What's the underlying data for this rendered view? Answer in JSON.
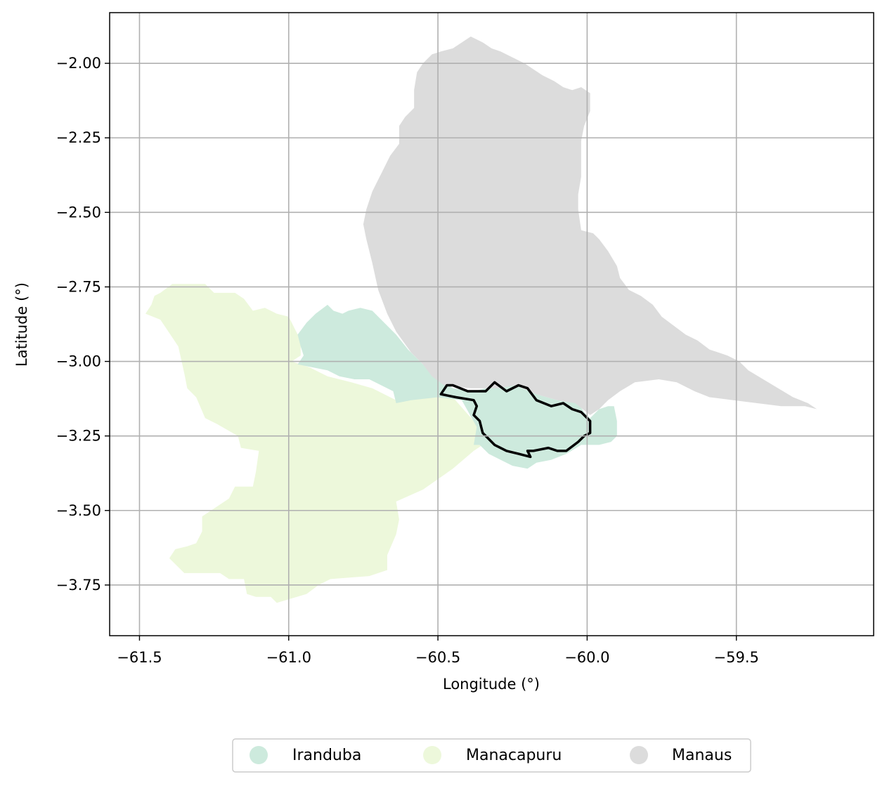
{
  "map": {
    "xlabel": "Longitude (°)",
    "ylabel": "Latitude (°)",
    "xlim": [
      -61.6,
      -59.04
    ],
    "ylim": [
      -3.92,
      -1.83
    ],
    "grid": true,
    "xticks": [
      -61.5,
      -61.0,
      -60.5,
      -60.0,
      -59.5
    ],
    "xtick_labels": [
      "−61.5",
      "−61.0",
      "−60.5",
      "−60.0",
      "−59.5"
    ],
    "yticks": [
      -2.0,
      -2.25,
      -2.5,
      -2.75,
      -3.0,
      -3.25,
      -3.5,
      -3.75
    ],
    "ytick_labels": [
      "−2.00",
      "−2.25",
      "−2.50",
      "−2.75",
      "−3.00",
      "−3.25",
      "−3.50",
      "−3.75"
    ],
    "legend_position": "bottom-center",
    "regions": [
      {
        "name": "Manacapuru",
        "color": "#edf8db",
        "polygon": [
          [
            -61.46,
            -2.81
          ],
          [
            -61.45,
            -2.78
          ],
          [
            -61.43,
            -2.77
          ],
          [
            -61.39,
            -2.74
          ],
          [
            -61.33,
            -2.74
          ],
          [
            -61.28,
            -2.74
          ],
          [
            -61.25,
            -2.77
          ],
          [
            -61.18,
            -2.77
          ],
          [
            -61.15,
            -2.79
          ],
          [
            -61.12,
            -2.83
          ],
          [
            -61.08,
            -2.82
          ],
          [
            -61.04,
            -2.84
          ],
          [
            -61.0,
            -2.85
          ],
          [
            -60.98,
            -2.89
          ],
          [
            -60.96,
            -2.93
          ],
          [
            -60.96,
            -2.98
          ],
          [
            -60.99,
            -3.0
          ],
          [
            -60.93,
            -3.02
          ],
          [
            -60.87,
            -3.05
          ],
          [
            -60.79,
            -3.07
          ],
          [
            -60.72,
            -3.09
          ],
          [
            -60.64,
            -3.13
          ],
          [
            -60.56,
            -3.12
          ],
          [
            -60.45,
            -3.12
          ],
          [
            -60.38,
            -3.2
          ],
          [
            -60.33,
            -3.27
          ],
          [
            -60.35,
            -3.28
          ],
          [
            -60.38,
            -3.3
          ],
          [
            -60.45,
            -3.36
          ],
          [
            -60.55,
            -3.43
          ],
          [
            -60.64,
            -3.47
          ],
          [
            -60.63,
            -3.53
          ],
          [
            -60.64,
            -3.58
          ],
          [
            -60.67,
            -3.65
          ],
          [
            -60.67,
            -3.7
          ],
          [
            -60.73,
            -3.72
          ],
          [
            -60.86,
            -3.73
          ],
          [
            -60.9,
            -3.75
          ],
          [
            -60.94,
            -3.78
          ],
          [
            -61.04,
            -3.81
          ],
          [
            -61.06,
            -3.79
          ],
          [
            -61.08,
            -3.79
          ],
          [
            -61.11,
            -3.79
          ],
          [
            -61.14,
            -3.78
          ],
          [
            -61.15,
            -3.73
          ],
          [
            -61.2,
            -3.73
          ],
          [
            -61.23,
            -3.71
          ],
          [
            -61.3,
            -3.71
          ],
          [
            -61.35,
            -3.71
          ],
          [
            -61.4,
            -3.66
          ],
          [
            -61.38,
            -3.63
          ],
          [
            -61.34,
            -3.62
          ],
          [
            -61.31,
            -3.61
          ],
          [
            -61.29,
            -3.57
          ],
          [
            -61.29,
            -3.52
          ],
          [
            -61.2,
            -3.46
          ],
          [
            -61.18,
            -3.42
          ],
          [
            -61.12,
            -3.42
          ],
          [
            -61.11,
            -3.37
          ],
          [
            -61.1,
            -3.3
          ],
          [
            -61.16,
            -3.29
          ],
          [
            -61.17,
            -3.25
          ],
          [
            -61.24,
            -3.21
          ],
          [
            -61.28,
            -3.19
          ],
          [
            -61.31,
            -3.12
          ],
          [
            -61.34,
            -3.09
          ],
          [
            -61.35,
            -3.04
          ],
          [
            -61.37,
            -2.95
          ],
          [
            -61.43,
            -2.86
          ],
          [
            -61.48,
            -2.84
          ],
          [
            -61.46,
            -2.81
          ]
        ]
      },
      {
        "name": "Iranduba",
        "color": "#cdeadd",
        "polygon": [
          [
            -60.97,
            -2.91
          ],
          [
            -60.94,
            -2.87
          ],
          [
            -60.91,
            -2.84
          ],
          [
            -60.87,
            -2.81
          ],
          [
            -60.85,
            -2.83
          ],
          [
            -60.82,
            -2.84
          ],
          [
            -60.8,
            -2.83
          ],
          [
            -60.76,
            -2.82
          ],
          [
            -60.72,
            -2.83
          ],
          [
            -60.69,
            -2.86
          ],
          [
            -60.64,
            -2.91
          ],
          [
            -60.6,
            -2.96
          ],
          [
            -60.55,
            -3.01
          ],
          [
            -60.51,
            -3.05
          ],
          [
            -60.45,
            -3.09
          ],
          [
            -60.38,
            -3.1
          ],
          [
            -60.3,
            -3.08
          ],
          [
            -60.24,
            -3.08
          ],
          [
            -60.17,
            -3.11
          ],
          [
            -60.1,
            -3.13
          ],
          [
            -60.03,
            -3.14
          ],
          [
            -60.01,
            -3.17
          ],
          [
            -59.99,
            -3.19
          ],
          [
            -59.96,
            -3.16
          ],
          [
            -59.93,
            -3.15
          ],
          [
            -59.91,
            -3.15
          ],
          [
            -59.9,
            -3.2
          ],
          [
            -59.9,
            -3.25
          ],
          [
            -59.92,
            -3.27
          ],
          [
            -59.96,
            -3.28
          ],
          [
            -60.02,
            -3.28
          ],
          [
            -60.07,
            -3.31
          ],
          [
            -60.12,
            -3.33
          ],
          [
            -60.17,
            -3.34
          ],
          [
            -60.2,
            -3.36
          ],
          [
            -60.25,
            -3.35
          ],
          [
            -60.29,
            -3.33
          ],
          [
            -60.33,
            -3.31
          ],
          [
            -60.36,
            -3.28
          ],
          [
            -60.38,
            -3.28
          ],
          [
            -60.37,
            -3.22
          ],
          [
            -60.42,
            -3.13
          ],
          [
            -60.5,
            -3.12
          ],
          [
            -60.59,
            -3.13
          ],
          [
            -60.64,
            -3.14
          ],
          [
            -60.65,
            -3.1
          ],
          [
            -60.69,
            -3.08
          ],
          [
            -60.73,
            -3.06
          ],
          [
            -60.78,
            -3.06
          ],
          [
            -60.83,
            -3.05
          ],
          [
            -60.87,
            -3.03
          ],
          [
            -60.92,
            -3.02
          ],
          [
            -60.97,
            -3.01
          ],
          [
            -60.95,
            -2.98
          ],
          [
            -60.96,
            -2.95
          ],
          [
            -60.97,
            -2.91
          ]
        ]
      },
      {
        "name": "Manaus",
        "color": "#dcdcdc",
        "polygon": [
          [
            -60.39,
            -1.91
          ],
          [
            -60.45,
            -1.95
          ],
          [
            -60.49,
            -1.96
          ],
          [
            -60.52,
            -1.97
          ],
          [
            -60.55,
            -2.0
          ],
          [
            -60.57,
            -2.03
          ],
          [
            -60.58,
            -2.09
          ],
          [
            -60.58,
            -2.15
          ],
          [
            -60.61,
            -2.18
          ],
          [
            -60.63,
            -2.21
          ],
          [
            -60.63,
            -2.27
          ],
          [
            -60.66,
            -2.31
          ],
          [
            -60.69,
            -2.37
          ],
          [
            -60.72,
            -2.43
          ],
          [
            -60.74,
            -2.49
          ],
          [
            -60.75,
            -2.54
          ],
          [
            -60.74,
            -2.59
          ],
          [
            -60.72,
            -2.67
          ],
          [
            -60.7,
            -2.76
          ],
          [
            -60.67,
            -2.84
          ],
          [
            -60.64,
            -2.9
          ],
          [
            -60.59,
            -2.97
          ],
          [
            -60.55,
            -3.01
          ],
          [
            -60.52,
            -3.05
          ],
          [
            -60.48,
            -3.08
          ],
          [
            -60.39,
            -3.09
          ],
          [
            -60.3,
            -3.09
          ],
          [
            -60.24,
            -3.08
          ],
          [
            -60.17,
            -3.11
          ],
          [
            -60.1,
            -3.13
          ],
          [
            -60.04,
            -3.14
          ],
          [
            -59.99,
            -3.18
          ],
          [
            -59.96,
            -3.16
          ],
          [
            -59.93,
            -3.13
          ],
          [
            -59.89,
            -3.1
          ],
          [
            -59.84,
            -3.07
          ],
          [
            -59.76,
            -3.06
          ],
          [
            -59.7,
            -3.07
          ],
          [
            -59.64,
            -3.1
          ],
          [
            -59.59,
            -3.12
          ],
          [
            -59.51,
            -3.13
          ],
          [
            -59.43,
            -3.14
          ],
          [
            -59.35,
            -3.15
          ],
          [
            -59.27,
            -3.15
          ],
          [
            -59.23,
            -3.16
          ],
          [
            -59.19,
            -3.17
          ],
          [
            -59.23,
            -3.16
          ],
          [
            -59.26,
            -3.14
          ],
          [
            -59.31,
            -3.12
          ],
          [
            -59.36,
            -3.09
          ],
          [
            -59.41,
            -3.06
          ],
          [
            -59.46,
            -3.03
          ],
          [
            -59.49,
            -3.0
          ],
          [
            -59.53,
            -2.98
          ],
          [
            -59.59,
            -2.96
          ],
          [
            -59.63,
            -2.93
          ],
          [
            -59.67,
            -2.91
          ],
          [
            -59.71,
            -2.88
          ],
          [
            -59.75,
            -2.85
          ],
          [
            -59.78,
            -2.81
          ],
          [
            -59.82,
            -2.78
          ],
          [
            -59.86,
            -2.76
          ],
          [
            -59.89,
            -2.72
          ],
          [
            -59.9,
            -2.68
          ],
          [
            -59.93,
            -2.63
          ],
          [
            -59.96,
            -2.59
          ],
          [
            -59.98,
            -2.57
          ],
          [
            -60.02,
            -2.56
          ],
          [
            -60.03,
            -2.49
          ],
          [
            -60.03,
            -2.44
          ],
          [
            -60.02,
            -2.38
          ],
          [
            -60.02,
            -2.31
          ],
          [
            -60.02,
            -2.26
          ],
          [
            -60.01,
            -2.21
          ],
          [
            -59.99,
            -2.16
          ],
          [
            -59.99,
            -2.1
          ],
          [
            -60.02,
            -2.08
          ],
          [
            -60.05,
            -2.09
          ],
          [
            -60.08,
            -2.08
          ],
          [
            -60.11,
            -2.06
          ],
          [
            -60.15,
            -2.04
          ],
          [
            -60.18,
            -2.02
          ],
          [
            -60.21,
            -2.0
          ],
          [
            -60.25,
            -1.98
          ],
          [
            -60.29,
            -1.96
          ],
          [
            -60.32,
            -1.95
          ],
          [
            -60.35,
            -1.93
          ],
          [
            -60.39,
            -1.91
          ]
        ]
      }
    ],
    "outline": {
      "color": "#000000",
      "polygon": [
        [
          -60.49,
          -3.11
        ],
        [
          -60.47,
          -3.08
        ],
        [
          -60.45,
          -3.08
        ],
        [
          -60.4,
          -3.1
        ],
        [
          -60.34,
          -3.1
        ],
        [
          -60.31,
          -3.07
        ],
        [
          -60.27,
          -3.1
        ],
        [
          -60.23,
          -3.08
        ],
        [
          -60.2,
          -3.09
        ],
        [
          -60.17,
          -3.13
        ],
        [
          -60.12,
          -3.15
        ],
        [
          -60.08,
          -3.14
        ],
        [
          -60.05,
          -3.16
        ],
        [
          -60.02,
          -3.17
        ],
        [
          -59.99,
          -3.2
        ],
        [
          -59.99,
          -3.24
        ],
        [
          -60.01,
          -3.25
        ],
        [
          -60.03,
          -3.27
        ],
        [
          -60.07,
          -3.3
        ],
        [
          -60.1,
          -3.3
        ],
        [
          -60.13,
          -3.29
        ],
        [
          -60.18,
          -3.3
        ],
        [
          -60.2,
          -3.3
        ],
        [
          -60.19,
          -3.32
        ],
        [
          -60.23,
          -3.31
        ],
        [
          -60.27,
          -3.3
        ],
        [
          -60.31,
          -3.28
        ],
        [
          -60.33,
          -3.26
        ],
        [
          -60.35,
          -3.24
        ],
        [
          -60.36,
          -3.2
        ],
        [
          -60.38,
          -3.18
        ],
        [
          -60.37,
          -3.15
        ],
        [
          -60.38,
          -3.13
        ],
        [
          -60.44,
          -3.12
        ],
        [
          -60.49,
          -3.11
        ]
      ]
    }
  },
  "legend": {
    "items": [
      {
        "label": "Iranduba",
        "color": "#cdeadd"
      },
      {
        "label": "Manacapuru",
        "color": "#edf8db"
      },
      {
        "label": "Manaus",
        "color": "#dcdcdc"
      }
    ]
  }
}
